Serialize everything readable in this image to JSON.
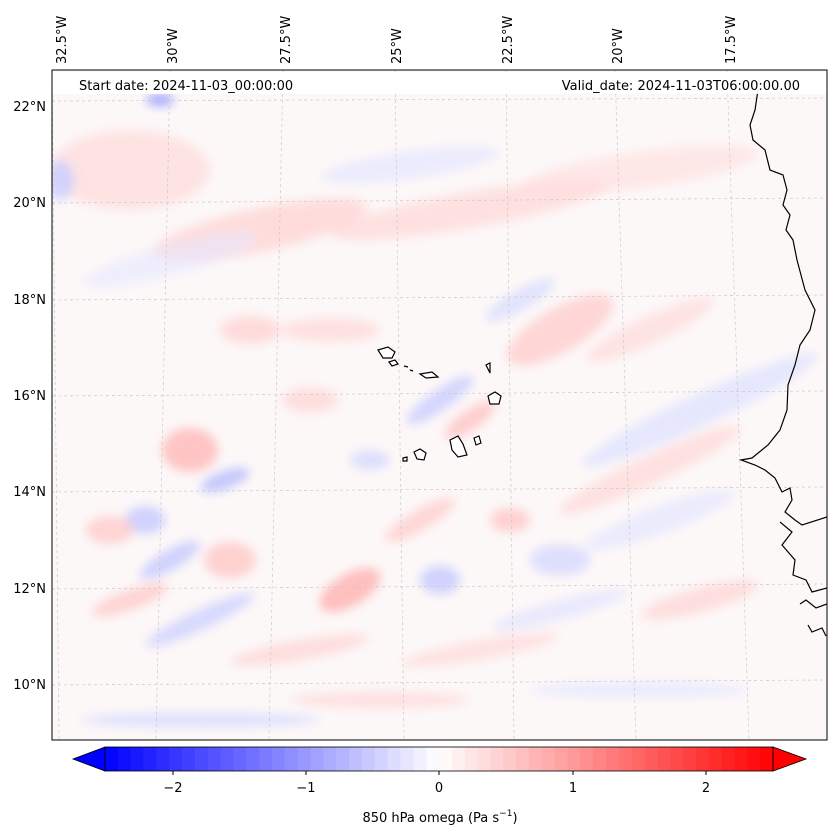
{
  "header": {
    "start_date": "Start date: 2024-11-03_00:00:00",
    "valid_date": "Valid_date: 2024-11-03T06:00:00.00"
  },
  "map": {
    "lon_labels": [
      "32.5°W",
      "30°W",
      "27.5°W",
      "25°W",
      "22.5°W",
      "20°W",
      "17.5°W"
    ],
    "lat_labels": [
      "22°N",
      "20°N",
      "18°N",
      "16°N",
      "14°N",
      "12°N",
      "10°N"
    ],
    "field_colors": {
      "positive": "#ff0000",
      "negative": "#0000ff",
      "neutral": "#ffffff"
    },
    "gridlines": true,
    "coastline_color": "#000000"
  },
  "colorbar": {
    "label": "850 hPa omega (Pa s",
    "label_sup": "−1",
    "label_end": ")",
    "ticks": [
      "−2",
      "−1",
      "0",
      "1",
      "2"
    ],
    "range": [
      -2.6,
      2.6
    ],
    "extend": "both"
  }
}
